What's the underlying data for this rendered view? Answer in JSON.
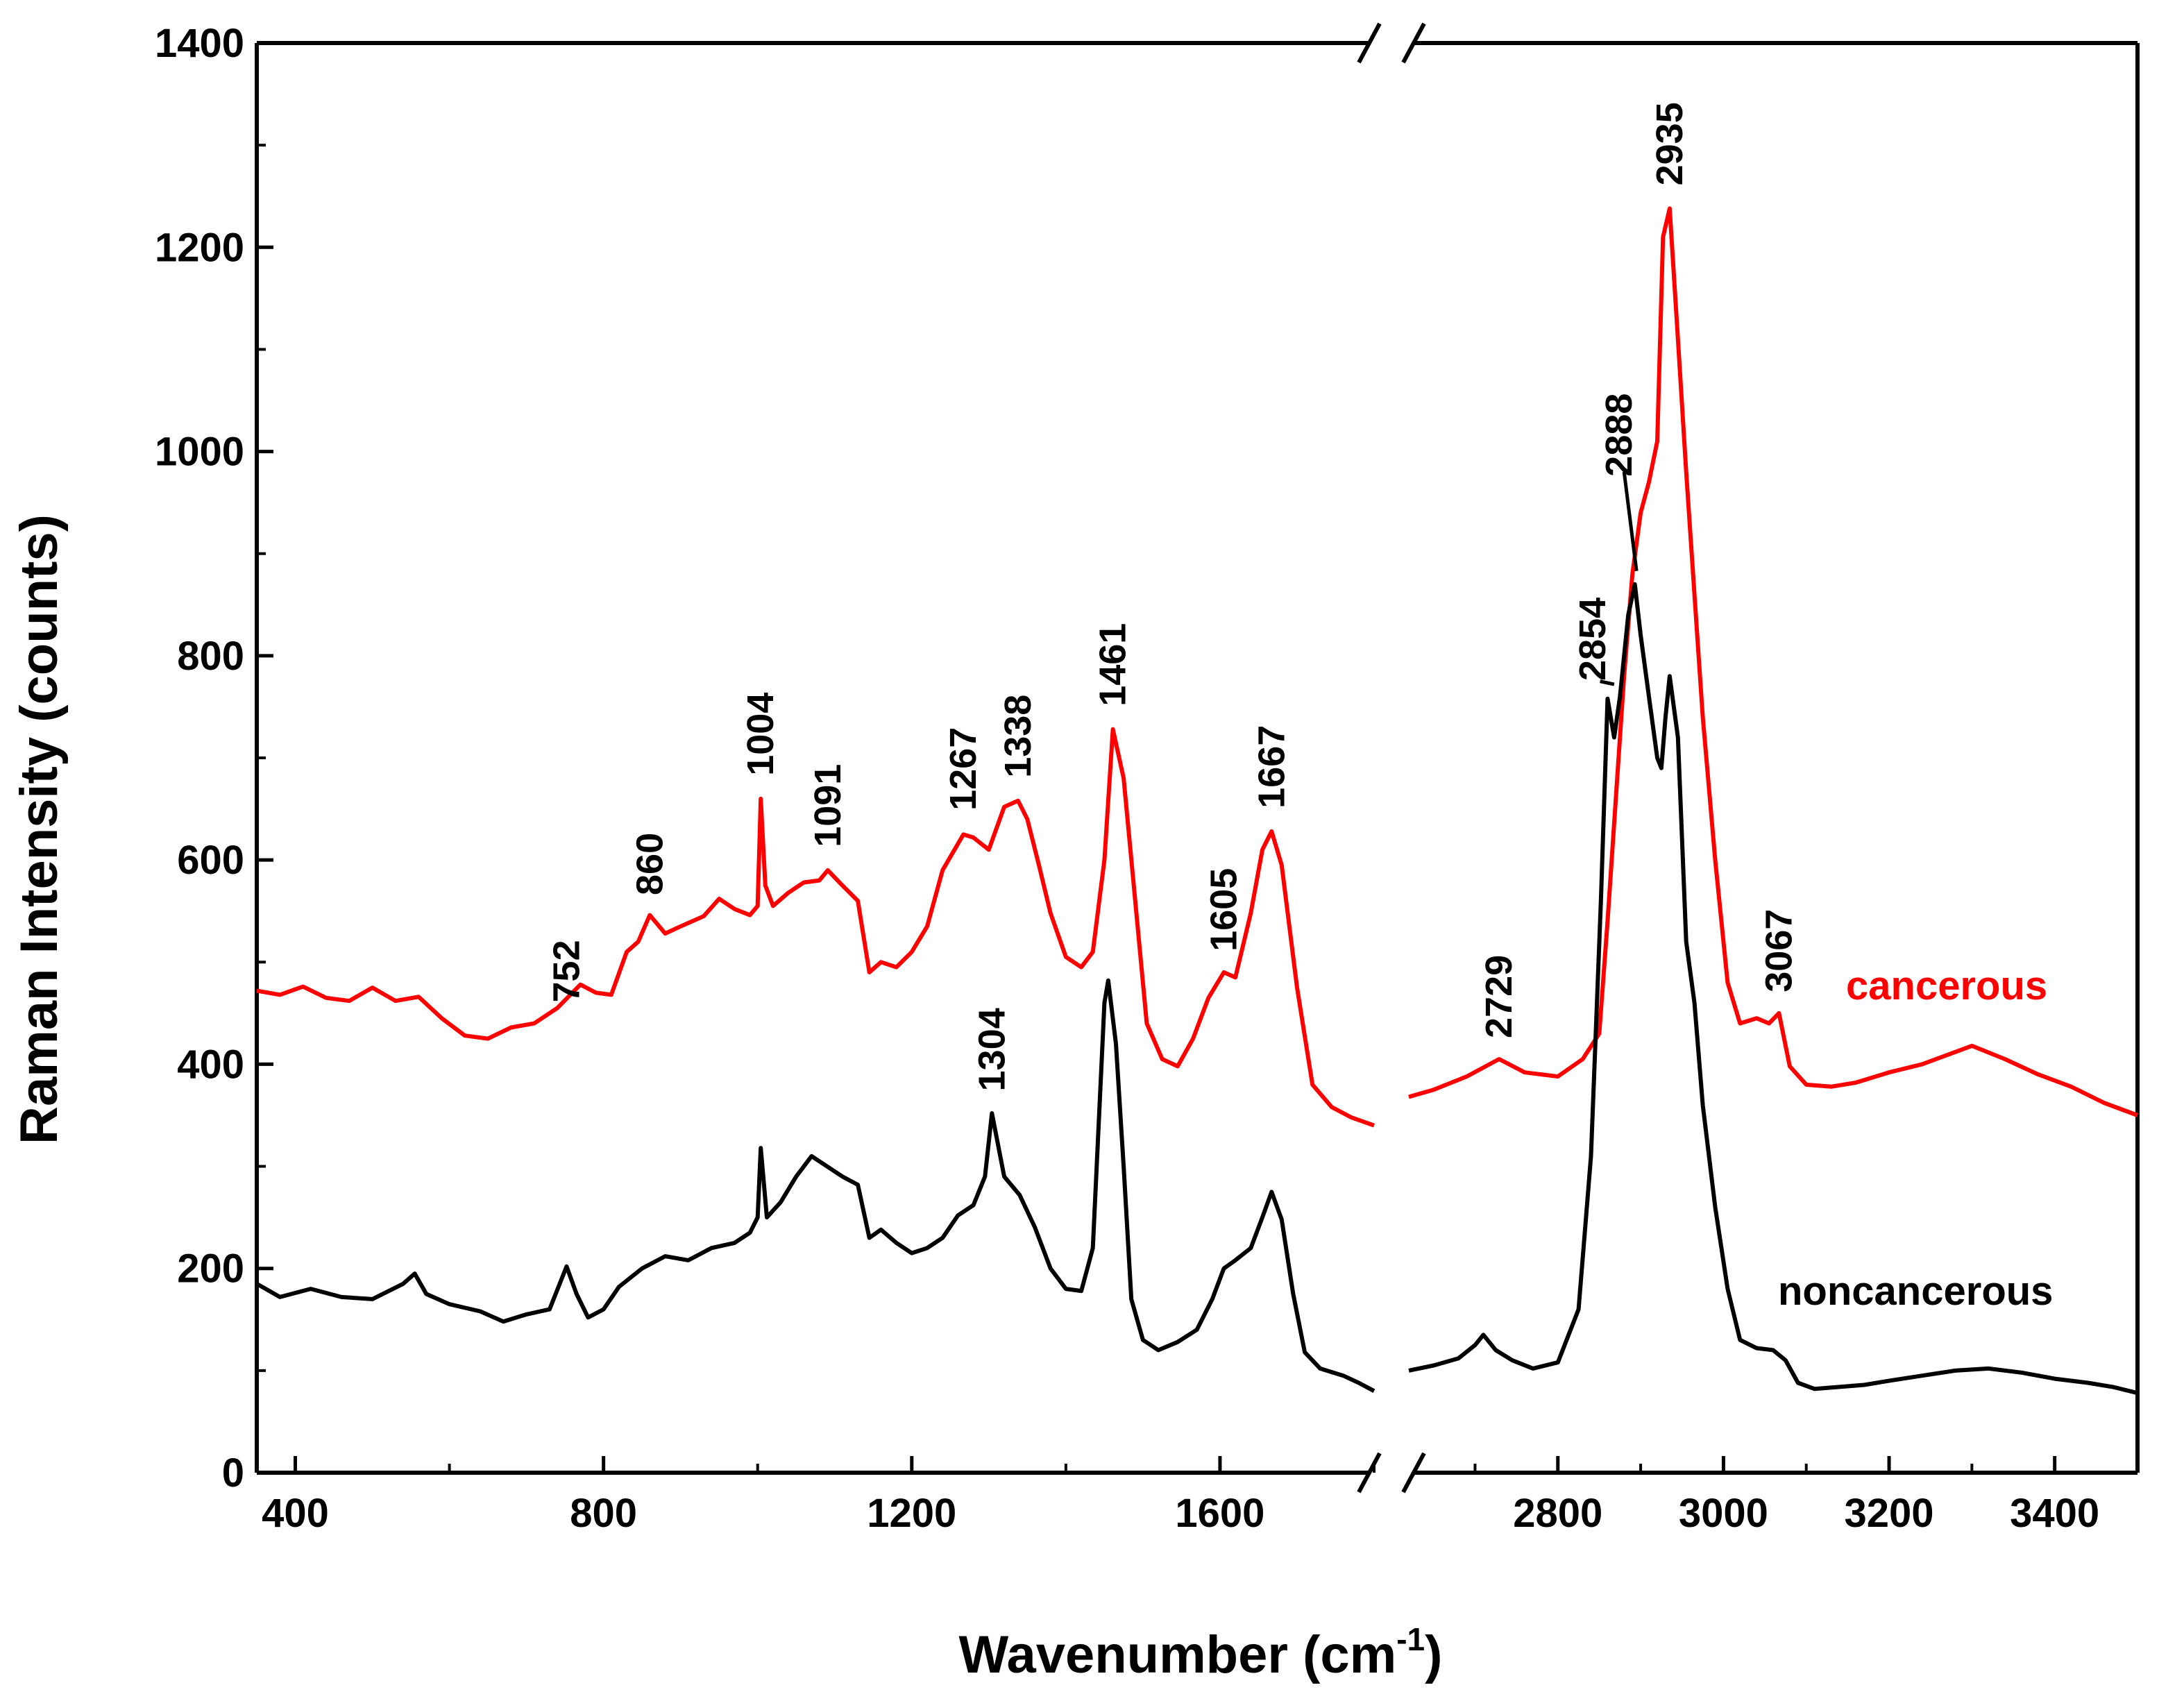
{
  "chart_data": {
    "type": "line",
    "title": "",
    "xlabel_main": "Wavenumber (cm",
    "xlabel_sup": "-1",
    "xlabel_close": ")",
    "ylabel": "Raman Intensity (counts)",
    "ylim": [
      0,
      1400
    ],
    "y_ticks": [
      "0",
      "200",
      "400",
      "600",
      "800",
      "1000",
      "1200",
      "1400"
    ],
    "x_segments": [
      {
        "range": [
          350,
          1800
        ],
        "ticks": [
          "400",
          "800",
          "1200",
          "1600"
        ]
      },
      {
        "range": [
          2620,
          3500
        ],
        "ticks": [
          "2800",
          "3000",
          "3200",
          "3400"
        ]
      }
    ],
    "colors": {
      "cancerous": "#ff0000",
      "noncancerous": "#000000",
      "axis": "#000000"
    },
    "series": [
      {
        "name": "cancerous",
        "label": "cancerous",
        "color": "#ff0000",
        "points": [
          [
            350,
            472
          ],
          [
            380,
            468
          ],
          [
            410,
            476
          ],
          [
            440,
            465
          ],
          [
            470,
            462
          ],
          [
            500,
            475
          ],
          [
            530,
            462
          ],
          [
            560,
            466
          ],
          [
            590,
            445
          ],
          [
            620,
            428
          ],
          [
            650,
            425
          ],
          [
            680,
            436
          ],
          [
            710,
            440
          ],
          [
            740,
            455
          ],
          [
            770,
            478
          ],
          [
            790,
            470
          ],
          [
            810,
            468
          ],
          [
            830,
            510
          ],
          [
            845,
            520
          ],
          [
            860,
            546
          ],
          [
            880,
            528
          ],
          [
            900,
            535
          ],
          [
            930,
            545
          ],
          [
            950,
            562
          ],
          [
            970,
            552
          ],
          [
            990,
            546
          ],
          [
            1000,
            555
          ],
          [
            1004,
            660
          ],
          [
            1010,
            575
          ],
          [
            1020,
            555
          ],
          [
            1040,
            568
          ],
          [
            1060,
            578
          ],
          [
            1080,
            580
          ],
          [
            1091,
            590
          ],
          [
            1110,
            575
          ],
          [
            1130,
            560
          ],
          [
            1145,
            490
          ],
          [
            1160,
            500
          ],
          [
            1180,
            495
          ],
          [
            1200,
            510
          ],
          [
            1220,
            535
          ],
          [
            1240,
            590
          ],
          [
            1267,
            625
          ],
          [
            1280,
            622
          ],
          [
            1300,
            610
          ],
          [
            1320,
            652
          ],
          [
            1338,
            658
          ],
          [
            1350,
            640
          ],
          [
            1365,
            595
          ],
          [
            1380,
            548
          ],
          [
            1400,
            505
          ],
          [
            1420,
            495
          ],
          [
            1435,
            510
          ],
          [
            1450,
            600
          ],
          [
            1461,
            728
          ],
          [
            1475,
            680
          ],
          [
            1490,
            560
          ],
          [
            1505,
            440
          ],
          [
            1525,
            405
          ],
          [
            1545,
            398
          ],
          [
            1565,
            425
          ],
          [
            1585,
            465
          ],
          [
            1605,
            490
          ],
          [
            1620,
            485
          ],
          [
            1640,
            548
          ],
          [
            1655,
            610
          ],
          [
            1667,
            628
          ],
          [
            1680,
            595
          ],
          [
            1700,
            475
          ],
          [
            1720,
            380
          ],
          [
            1745,
            358
          ],
          [
            1770,
            348
          ],
          [
            1800,
            340
          ],
          [
            2620,
            368
          ],
          [
            2650,
            375
          ],
          [
            2690,
            388
          ],
          [
            2729,
            405
          ],
          [
            2760,
            392
          ],
          [
            2800,
            388
          ],
          [
            2830,
            405
          ],
          [
            2850,
            430
          ],
          [
            2860,
            540
          ],
          [
            2870,
            660
          ],
          [
            2880,
            780
          ],
          [
            2890,
            880
          ],
          [
            2900,
            940
          ],
          [
            2910,
            970
          ],
          [
            2920,
            1010
          ],
          [
            2927,
            1210
          ],
          [
            2935,
            1238
          ],
          [
            2945,
            1110
          ],
          [
            2955,
            980
          ],
          [
            2965,
            860
          ],
          [
            2975,
            740
          ],
          [
            2990,
            600
          ],
          [
            3005,
            480
          ],
          [
            3020,
            440
          ],
          [
            3040,
            445
          ],
          [
            3055,
            440
          ],
          [
            3067,
            450
          ],
          [
            3080,
            398
          ],
          [
            3100,
            380
          ],
          [
            3130,
            378
          ],
          [
            3160,
            382
          ],
          [
            3200,
            392
          ],
          [
            3240,
            400
          ],
          [
            3280,
            412
          ],
          [
            3300,
            418
          ],
          [
            3340,
            405
          ],
          [
            3380,
            390
          ],
          [
            3420,
            378
          ],
          [
            3460,
            362
          ],
          [
            3500,
            350
          ]
        ]
      },
      {
        "name": "noncancerous",
        "label": "noncancerous",
        "color": "#000000",
        "points": [
          [
            350,
            185
          ],
          [
            380,
            172
          ],
          [
            420,
            180
          ],
          [
            460,
            172
          ],
          [
            500,
            170
          ],
          [
            540,
            185
          ],
          [
            555,
            195
          ],
          [
            570,
            175
          ],
          [
            600,
            165
          ],
          [
            640,
            158
          ],
          [
            670,
            148
          ],
          [
            700,
            155
          ],
          [
            730,
            160
          ],
          [
            752,
            202
          ],
          [
            765,
            175
          ],
          [
            780,
            152
          ],
          [
            800,
            160
          ],
          [
            820,
            182
          ],
          [
            850,
            200
          ],
          [
            880,
            212
          ],
          [
            910,
            208
          ],
          [
            940,
            220
          ],
          [
            970,
            225
          ],
          [
            990,
            235
          ],
          [
            1000,
            250
          ],
          [
            1004,
            318
          ],
          [
            1012,
            250
          ],
          [
            1030,
            265
          ],
          [
            1050,
            290
          ],
          [
            1070,
            310
          ],
          [
            1090,
            300
          ],
          [
            1110,
            290
          ],
          [
            1130,
            282
          ],
          [
            1145,
            230
          ],
          [
            1160,
            238
          ],
          [
            1180,
            225
          ],
          [
            1200,
            215
          ],
          [
            1220,
            220
          ],
          [
            1240,
            230
          ],
          [
            1260,
            252
          ],
          [
            1280,
            262
          ],
          [
            1295,
            290
          ],
          [
            1304,
            352
          ],
          [
            1320,
            290
          ],
          [
            1340,
            272
          ],
          [
            1360,
            240
          ],
          [
            1380,
            200
          ],
          [
            1400,
            180
          ],
          [
            1420,
            178
          ],
          [
            1435,
            220
          ],
          [
            1450,
            460
          ],
          [
            1455,
            482
          ],
          [
            1465,
            420
          ],
          [
            1475,
            300
          ],
          [
            1485,
            170
          ],
          [
            1500,
            130
          ],
          [
            1520,
            120
          ],
          [
            1545,
            128
          ],
          [
            1570,
            140
          ],
          [
            1590,
            170
          ],
          [
            1605,
            200
          ],
          [
            1620,
            208
          ],
          [
            1640,
            220
          ],
          [
            1655,
            250
          ],
          [
            1667,
            275
          ],
          [
            1680,
            248
          ],
          [
            1695,
            175
          ],
          [
            1710,
            118
          ],
          [
            1730,
            102
          ],
          [
            1760,
            95
          ],
          [
            1780,
            88
          ],
          [
            1800,
            80
          ],
          [
            2620,
            100
          ],
          [
            2650,
            105
          ],
          [
            2680,
            112
          ],
          [
            2700,
            125
          ],
          [
            2710,
            135
          ],
          [
            2725,
            120
          ],
          [
            2745,
            110
          ],
          [
            2770,
            102
          ],
          [
            2800,
            108
          ],
          [
            2825,
            160
          ],
          [
            2840,
            310
          ],
          [
            2852,
            560
          ],
          [
            2860,
            758
          ],
          [
            2868,
            720
          ],
          [
            2875,
            760
          ],
          [
            2885,
            840
          ],
          [
            2893,
            870
          ],
          [
            2900,
            820
          ],
          [
            2910,
            760
          ],
          [
            2920,
            700
          ],
          [
            2925,
            690
          ],
          [
            2930,
            740
          ],
          [
            2935,
            780
          ],
          [
            2945,
            720
          ],
          [
            2955,
            520
          ],
          [
            2965,
            460
          ],
          [
            2975,
            360
          ],
          [
            2990,
            260
          ],
          [
            3005,
            180
          ],
          [
            3020,
            130
          ],
          [
            3040,
            122
          ],
          [
            3060,
            120
          ],
          [
            3075,
            110
          ],
          [
            3090,
            88
          ],
          [
            3110,
            82
          ],
          [
            3140,
            84
          ],
          [
            3170,
            86
          ],
          [
            3200,
            90
          ],
          [
            3240,
            95
          ],
          [
            3280,
            100
          ],
          [
            3320,
            102
          ],
          [
            3360,
            98
          ],
          [
            3400,
            92
          ],
          [
            3440,
            88
          ],
          [
            3470,
            84
          ],
          [
            3500,
            78
          ]
        ]
      }
    ],
    "annotations": [
      {
        "text": "752",
        "x": 752,
        "y": 455,
        "series": "cancerous"
      },
      {
        "text": "860",
        "x": 860,
        "y": 560,
        "series": "cancerous"
      },
      {
        "text": "1004",
        "x": 1004,
        "y": 677,
        "series": "cancerous"
      },
      {
        "text": "1091",
        "x": 1091,
        "y": 607,
        "series": "cancerous"
      },
      {
        "text": "1267",
        "x": 1267,
        "y": 643,
        "series": "cancerous"
      },
      {
        "text": "1338",
        "x": 1338,
        "y": 675,
        "series": "cancerous"
      },
      {
        "text": "1461",
        "x": 1461,
        "y": 745,
        "series": "cancerous"
      },
      {
        "text": "1605",
        "x": 1605,
        "y": 505,
        "series": "cancerous"
      },
      {
        "text": "1667",
        "x": 1667,
        "y": 645,
        "series": "cancerous"
      },
      {
        "text": "1304",
        "x": 1304,
        "y": 368,
        "series": "noncancerous"
      },
      {
        "text": "2729",
        "x": 2729,
        "y": 420,
        "series": "cancerous"
      },
      {
        "text": "2854",
        "x": 2842,
        "y": 770,
        "series": "cancerous"
      },
      {
        "text": "2888",
        "x": 2874,
        "y": 970,
        "series": "cancerous"
      },
      {
        "text": "2935",
        "x": 2935,
        "y": 1255,
        "series": "cancerous"
      },
      {
        "text": "3067",
        "x": 3067,
        "y": 465,
        "series": "cancerous"
      }
    ],
    "leader_lines": [
      {
        "from": [
          2851,
          775
        ],
        "to": [
          2868,
          772
        ],
        "label": "2854"
      },
      {
        "from": [
          2880,
          980
        ],
        "to": [
          2895,
          883
        ],
        "label": "2888"
      }
    ],
    "legend": {
      "placement": "right",
      "entries": [
        "cancerous",
        "noncancerous"
      ]
    }
  }
}
